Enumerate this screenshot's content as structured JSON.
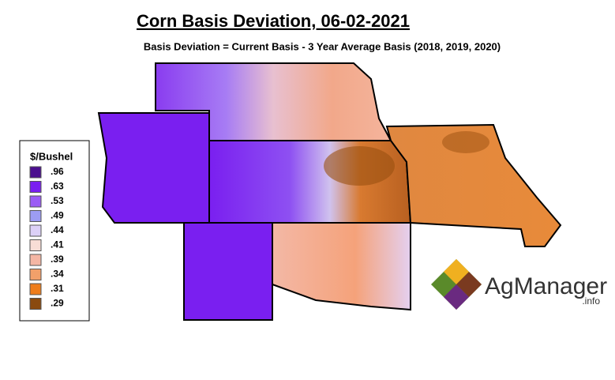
{
  "header": {
    "title": "Corn Basis Deviation, 06-02-2021",
    "subtitle": "Basis Deviation = Current Basis - 3 Year Average Basis (2018, 2019, 2020)"
  },
  "legend": {
    "title": "$/Bushel",
    "items": [
      {
        "label": ".96",
        "color": "#4b0f8f"
      },
      {
        "label": ".63",
        "color": "#7a1ff0"
      },
      {
        "label": ".53",
        "color": "#9b5cf5"
      },
      {
        "label": ".49",
        "color": "#9c9cf2"
      },
      {
        "label": ".44",
        "color": "#dcd0f7"
      },
      {
        "label": ".41",
        "color": "#f8ddd6"
      },
      {
        "label": ".39",
        "color": "#f4b6a4"
      },
      {
        "label": ".34",
        "color": "#f2a06a"
      },
      {
        "label": ".31",
        "color": "#ee7d1c"
      },
      {
        "label": ".29",
        "color": "#8a4a0f"
      }
    ]
  },
  "logo": {
    "name": "AgManager",
    "suffix": ".info"
  }
}
